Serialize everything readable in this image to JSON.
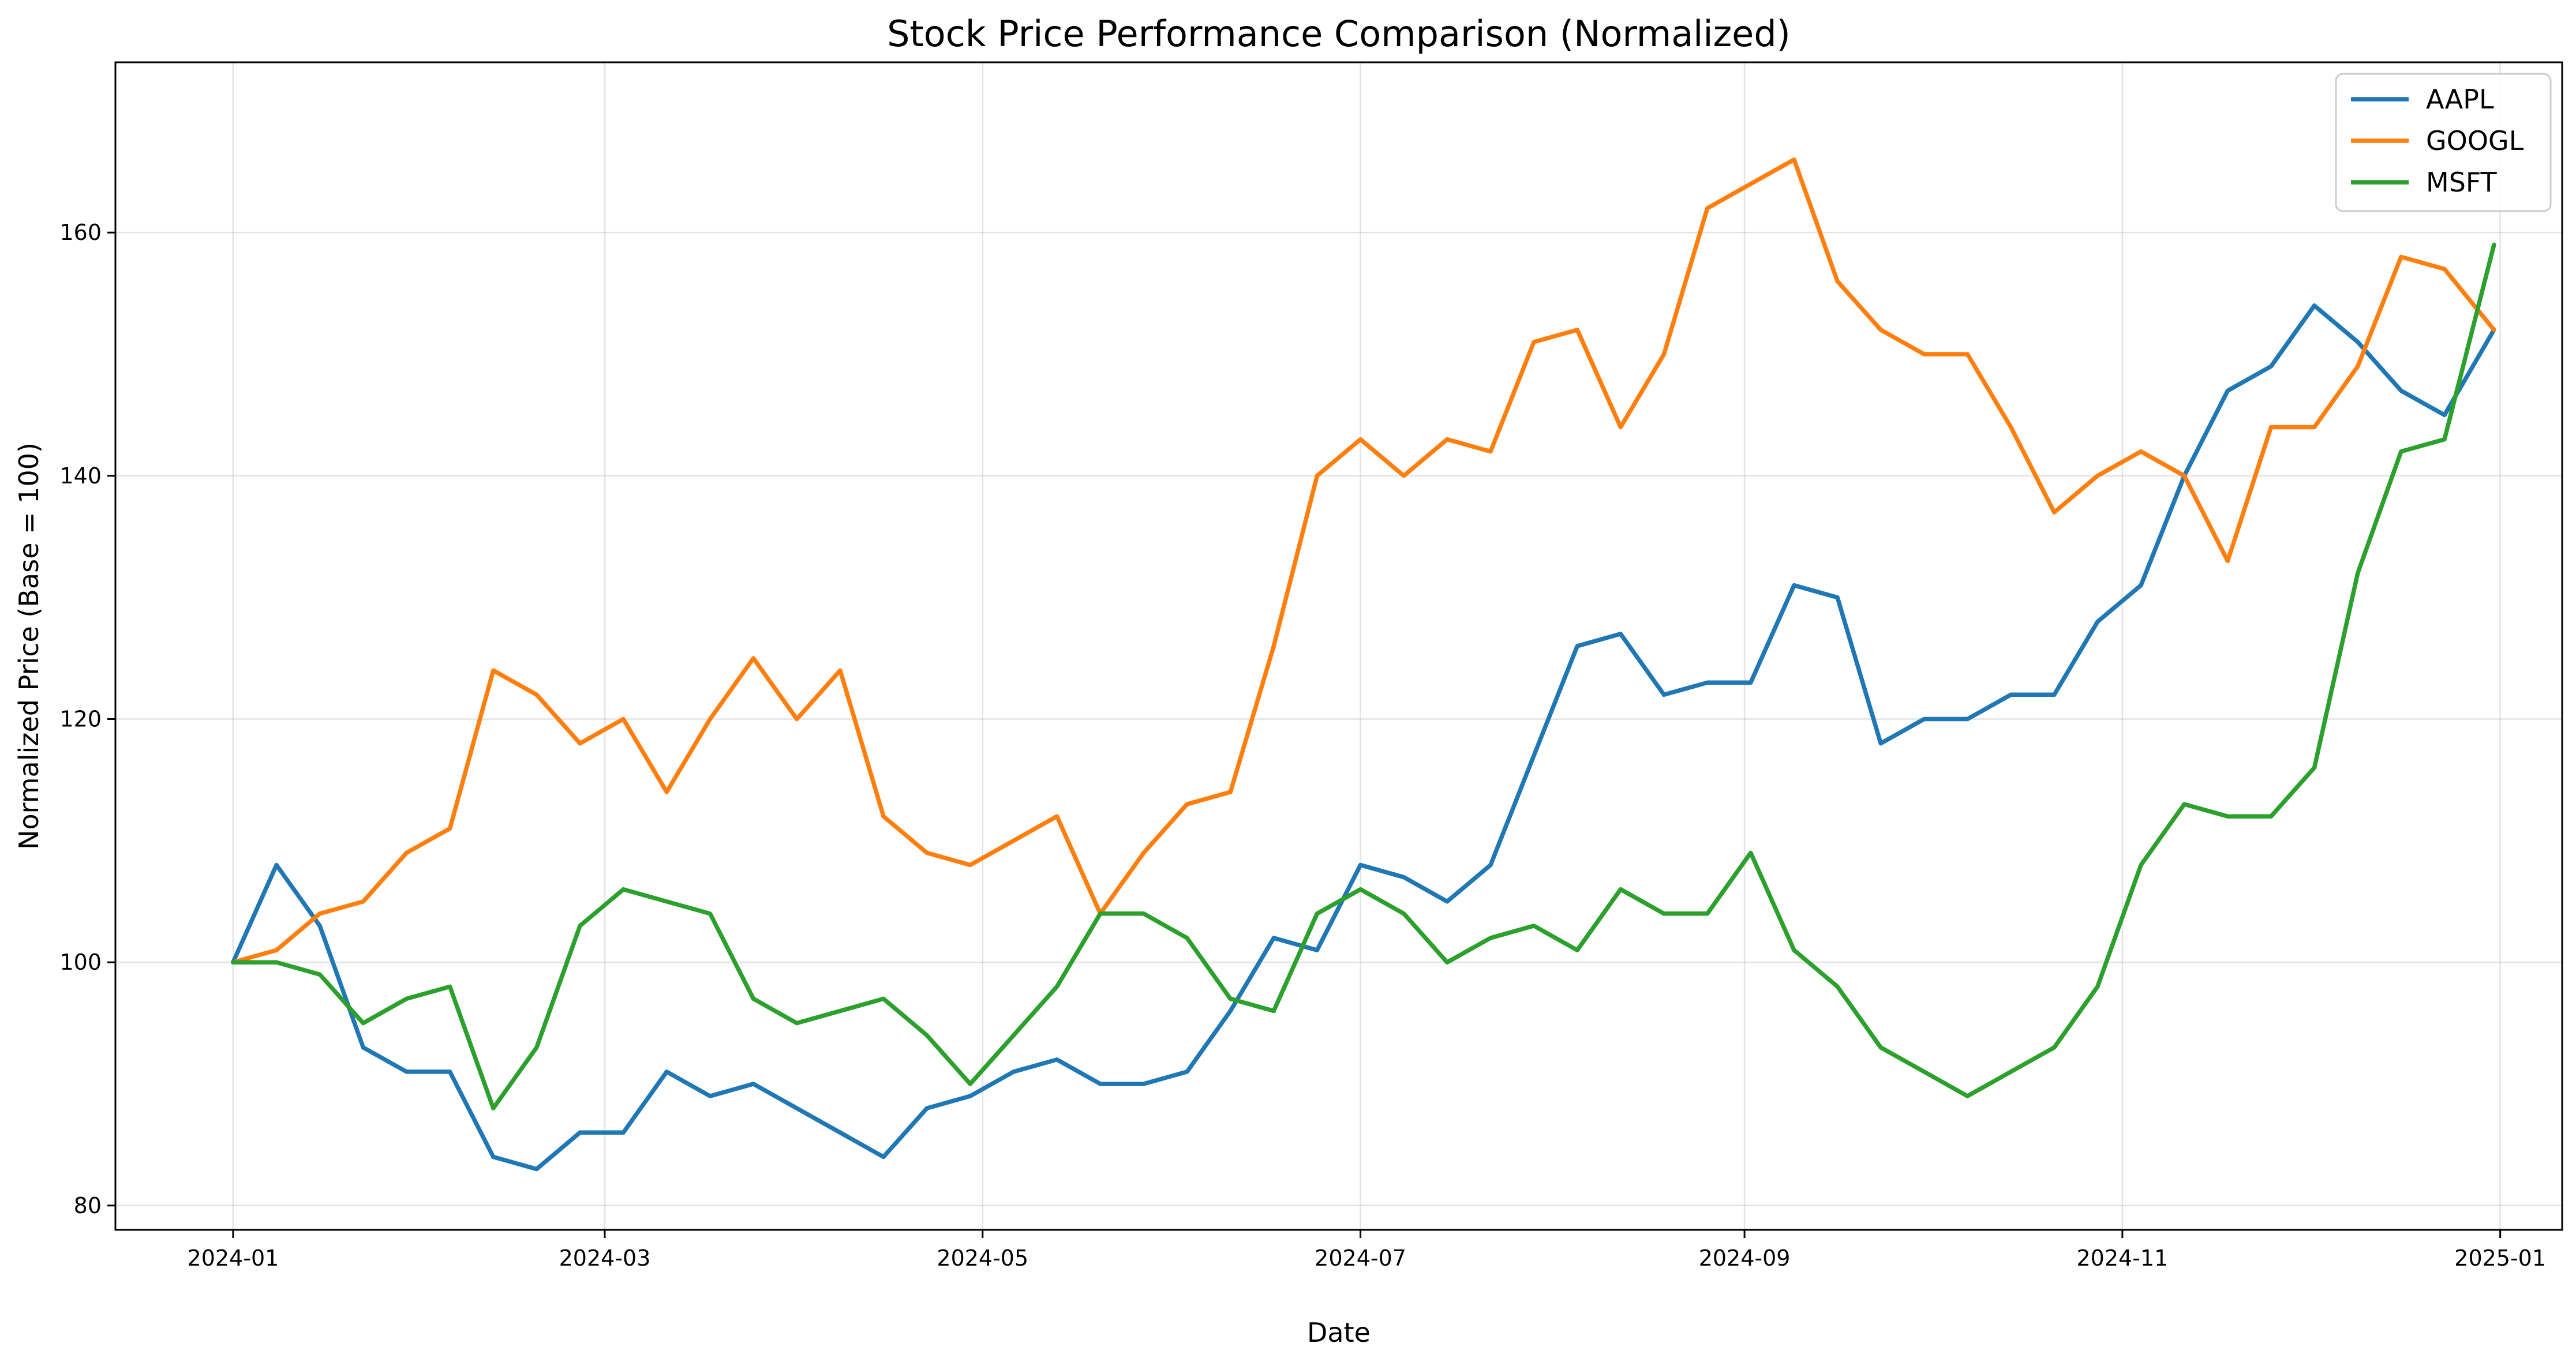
{
  "chart_data": {
    "type": "line",
    "title": "Stock Price Performance Comparison (Normalized)",
    "xlabel": "Date",
    "ylabel": "Normalized Price (Base = 100)",
    "xlim": [
      "2023-12-13",
      "2025-01-11"
    ],
    "ylim": [
      78,
      174
    ],
    "x_ticks": [
      "2024-01",
      "2024-03",
      "2024-05",
      "2024-07",
      "2024-09",
      "2024-11",
      "2025-01"
    ],
    "y_ticks": [
      80,
      100,
      120,
      140,
      160
    ],
    "grid": true,
    "legend_position": "top-right",
    "series": [
      {
        "name": "AAPL",
        "color": "#1f77b4",
        "x": [
          "2024-01-01",
          "2024-01-08",
          "2024-01-15",
          "2024-01-22",
          "2024-01-29",
          "2024-02-05",
          "2024-02-12",
          "2024-02-19",
          "2024-02-26",
          "2024-03-04",
          "2024-03-11",
          "2024-03-18",
          "2024-03-25",
          "2024-04-01",
          "2024-04-08",
          "2024-04-15",
          "2024-04-22",
          "2024-04-29",
          "2024-05-06",
          "2024-05-13",
          "2024-05-20",
          "2024-05-27",
          "2024-06-03",
          "2024-06-10",
          "2024-06-17",
          "2024-06-24",
          "2024-07-01",
          "2024-07-08",
          "2024-07-15",
          "2024-07-22",
          "2024-07-29",
          "2024-08-05",
          "2024-08-12",
          "2024-08-19",
          "2024-08-26",
          "2024-09-02",
          "2024-09-09",
          "2024-09-16",
          "2024-09-23",
          "2024-09-30",
          "2024-10-07",
          "2024-10-14",
          "2024-10-21",
          "2024-10-28",
          "2024-11-04",
          "2024-11-11",
          "2024-11-18",
          "2024-11-25",
          "2024-12-02",
          "2024-12-09",
          "2024-12-16",
          "2024-12-23",
          "2024-12-31"
        ],
        "y": [
          100,
          108,
          103,
          93,
          91,
          91,
          84,
          83,
          86,
          86,
          91,
          89,
          90,
          88,
          86,
          84,
          88,
          89,
          91,
          92,
          90,
          90,
          91,
          96,
          102,
          101,
          108,
          107,
          105,
          108,
          117,
          126,
          127,
          122,
          123,
          123,
          131,
          130,
          118,
          120,
          120,
          122,
          122,
          128,
          131,
          140,
          147,
          149,
          154,
          151,
          147,
          145,
          152
        ]
      },
      {
        "name": "GOOGL",
        "color": "#ff7f0e",
        "x": [
          "2024-01-01",
          "2024-01-08",
          "2024-01-15",
          "2024-01-22",
          "2024-01-29",
          "2024-02-05",
          "2024-02-12",
          "2024-02-19",
          "2024-02-26",
          "2024-03-04",
          "2024-03-11",
          "2024-03-18",
          "2024-03-25",
          "2024-04-01",
          "2024-04-08",
          "2024-04-15",
          "2024-04-22",
          "2024-04-29",
          "2024-05-06",
          "2024-05-13",
          "2024-05-20",
          "2024-05-27",
          "2024-06-03",
          "2024-06-10",
          "2024-06-17",
          "2024-06-24",
          "2024-07-01",
          "2024-07-08",
          "2024-07-15",
          "2024-07-22",
          "2024-07-29",
          "2024-08-05",
          "2024-08-12",
          "2024-08-19",
          "2024-08-26",
          "2024-09-02",
          "2024-09-09",
          "2024-09-16",
          "2024-09-23",
          "2024-09-30",
          "2024-10-07",
          "2024-10-14",
          "2024-10-21",
          "2024-10-28",
          "2024-11-04",
          "2024-11-11",
          "2024-11-18",
          "2024-11-25",
          "2024-12-02",
          "2024-12-09",
          "2024-12-16",
          "2024-12-23",
          "2024-12-31"
        ],
        "y": [
          100,
          101,
          104,
          105,
          109,
          111,
          124,
          122,
          118,
          120,
          114,
          120,
          125,
          120,
          124,
          112,
          109,
          108,
          110,
          112,
          104,
          109,
          113,
          114,
          126,
          140,
          143,
          140,
          143,
          142,
          151,
          152,
          144,
          150,
          162,
          164,
          166,
          156,
          152,
          150,
          150,
          144,
          137,
          140,
          142,
          140,
          133,
          144,
          144,
          149,
          158,
          157,
          152
        ]
      },
      {
        "name": "MSFT",
        "color": "#2ca02c",
        "x": [
          "2024-01-01",
          "2024-01-08",
          "2024-01-15",
          "2024-01-22",
          "2024-01-29",
          "2024-02-05",
          "2024-02-12",
          "2024-02-19",
          "2024-02-26",
          "2024-03-04",
          "2024-03-11",
          "2024-03-18",
          "2024-03-25",
          "2024-04-01",
          "2024-04-08",
          "2024-04-15",
          "2024-04-22",
          "2024-04-29",
          "2024-05-06",
          "2024-05-13",
          "2024-05-20",
          "2024-05-27",
          "2024-06-03",
          "2024-06-10",
          "2024-06-17",
          "2024-06-24",
          "2024-07-01",
          "2024-07-08",
          "2024-07-15",
          "2024-07-22",
          "2024-07-29",
          "2024-08-05",
          "2024-08-12",
          "2024-08-19",
          "2024-08-26",
          "2024-09-02",
          "2024-09-09",
          "2024-09-16",
          "2024-09-23",
          "2024-09-30",
          "2024-10-07",
          "2024-10-14",
          "2024-10-21",
          "2024-10-28",
          "2024-11-04",
          "2024-11-11",
          "2024-11-18",
          "2024-11-25",
          "2024-12-02",
          "2024-12-09",
          "2024-12-16",
          "2024-12-23",
          "2024-12-31"
        ],
        "y": [
          100,
          100,
          99,
          95,
          97,
          98,
          88,
          93,
          103,
          106,
          105,
          104,
          97,
          95,
          96,
          97,
          94,
          90,
          94,
          98,
          104,
          104,
          102,
          97,
          96,
          104,
          106,
          104,
          100,
          102,
          103,
          101,
          106,
          104,
          104,
          109,
          101,
          98,
          93,
          91,
          89,
          91,
          93,
          98,
          108,
          113,
          112,
          112,
          116,
          132,
          142,
          143,
          159
        ]
      }
    ]
  }
}
